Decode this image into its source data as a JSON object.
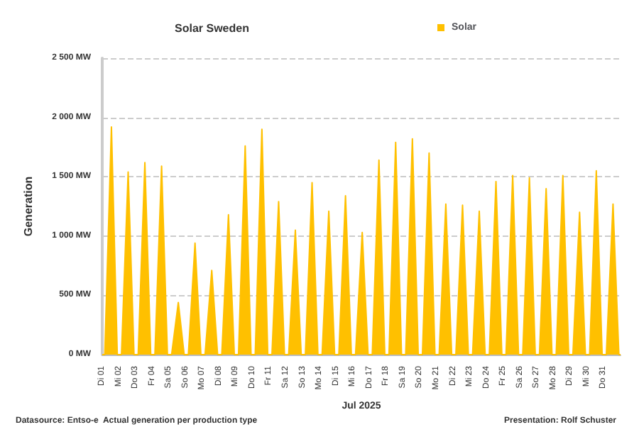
{
  "chart_data": {
    "type": "area",
    "title": "Solar Sweden",
    "xlabel": "Jul 2025",
    "ylabel": "Generation",
    "x": [
      "2025-07-01T00:00",
      "2025-07-01T03:36",
      "2025-07-01T13:12",
      "2025-07-01T21:36",
      "2025-07-02T03:36",
      "2025-07-02T13:12",
      "2025-07-02T21:36",
      "2025-07-03T03:36",
      "2025-07-03T13:12",
      "2025-07-03T21:36",
      "2025-07-04T03:36",
      "2025-07-04T13:12",
      "2025-07-04T21:36",
      "2025-07-05T03:36",
      "2025-07-05T13:12",
      "2025-07-05T21:36",
      "2025-07-06T03:36",
      "2025-07-06T13:12",
      "2025-07-06T21:36",
      "2025-07-07T03:36",
      "2025-07-07T13:12",
      "2025-07-07T21:36",
      "2025-07-08T03:36",
      "2025-07-08T13:12",
      "2025-07-08T21:36",
      "2025-07-09T03:36",
      "2025-07-09T13:12",
      "2025-07-09T21:36",
      "2025-07-10T03:36",
      "2025-07-10T13:12",
      "2025-07-10T21:36",
      "2025-07-11T03:36",
      "2025-07-11T13:12",
      "2025-07-11T21:36",
      "2025-07-12T03:36",
      "2025-07-12T13:12",
      "2025-07-12T21:36",
      "2025-07-13T03:36",
      "2025-07-13T13:12",
      "2025-07-13T21:36",
      "2025-07-14T03:36",
      "2025-07-14T13:12",
      "2025-07-14T21:36",
      "2025-07-15T03:36",
      "2025-07-15T13:12",
      "2025-07-15T21:36",
      "2025-07-16T03:36",
      "2025-07-16T13:12",
      "2025-07-16T21:36",
      "2025-07-17T03:36",
      "2025-07-17T13:12",
      "2025-07-17T21:36",
      "2025-07-18T03:36",
      "2025-07-18T13:12",
      "2025-07-18T21:36",
      "2025-07-19T03:36",
      "2025-07-19T13:12",
      "2025-07-19T21:36",
      "2025-07-20T03:36",
      "2025-07-20T13:12",
      "2025-07-20T21:36",
      "2025-07-21T03:36",
      "2025-07-21T13:12",
      "2025-07-21T21:36",
      "2025-07-22T03:36",
      "2025-07-22T13:12",
      "2025-07-22T21:36",
      "2025-07-23T03:36",
      "2025-07-23T13:12",
      "2025-07-23T21:36",
      "2025-07-24T03:36",
      "2025-07-24T13:12",
      "2025-07-24T21:36",
      "2025-07-25T03:36",
      "2025-07-25T13:12",
      "2025-07-25T21:36",
      "2025-07-26T03:36",
      "2025-07-26T13:12",
      "2025-07-26T21:36",
      "2025-07-27T03:36",
      "2025-07-27T13:12",
      "2025-07-27T21:36",
      "2025-07-28T03:36",
      "2025-07-28T13:12",
      "2025-07-28T21:36",
      "2025-07-29T03:36",
      "2025-07-29T13:12",
      "2025-07-29T21:36",
      "2025-07-30T03:36",
      "2025-07-30T13:12",
      "2025-07-30T21:36",
      "2025-07-31T03:36",
      "2025-07-31T13:12",
      "2025-07-31T21:36",
      "2025-08-01T00:00"
    ],
    "series": [
      {
        "name": "Solar",
        "color": "#ffc000",
        "values": [
          0,
          0,
          1920,
          0,
          0,
          1540,
          0,
          0,
          1620,
          0,
          0,
          1590,
          0,
          0,
          440,
          0,
          0,
          940,
          0,
          0,
          710,
          0,
          0,
          1180,
          0,
          0,
          1760,
          0,
          0,
          1900,
          0,
          0,
          1290,
          0,
          0,
          1050,
          0,
          0,
          1450,
          0,
          0,
          1210,
          0,
          0,
          1340,
          0,
          0,
          1030,
          0,
          0,
          1640,
          0,
          0,
          1790,
          0,
          0,
          1820,
          0,
          0,
          1700,
          0,
          0,
          1270,
          0,
          0,
          1260,
          0,
          0,
          1210,
          0,
          0,
          1460,
          0,
          0,
          1510,
          0,
          0,
          1490,
          0,
          0,
          1400,
          0,
          0,
          1510,
          0,
          0,
          1200,
          0,
          0,
          1550,
          0,
          0,
          1270,
          0,
          0
        ]
      }
    ],
    "xlim": [
      "2025-07-01",
      "2025-08-01"
    ],
    "xticks": [
      {
        "value": "2025-07-01",
        "label": "Di 01"
      },
      {
        "value": "2025-07-02",
        "label": "Mi 02"
      },
      {
        "value": "2025-07-03",
        "label": "Do 03"
      },
      {
        "value": "2025-07-04",
        "label": "Fr 04"
      },
      {
        "value": "2025-07-05",
        "label": "Sa 05"
      },
      {
        "value": "2025-07-06",
        "label": "So 06"
      },
      {
        "value": "2025-07-07",
        "label": "Mo 07"
      },
      {
        "value": "2025-07-08",
        "label": "Di 08"
      },
      {
        "value": "2025-07-09",
        "label": "Mi 09"
      },
      {
        "value": "2025-07-10",
        "label": "Do 10"
      },
      {
        "value": "2025-07-11",
        "label": "Fr 11"
      },
      {
        "value": "2025-07-12",
        "label": "Sa 12"
      },
      {
        "value": "2025-07-13",
        "label": "So 13"
      },
      {
        "value": "2025-07-14",
        "label": "Mo 14"
      },
      {
        "value": "2025-07-15",
        "label": "Di 15"
      },
      {
        "value": "2025-07-16",
        "label": "Mi 16"
      },
      {
        "value": "2025-07-17",
        "label": "Do 17"
      },
      {
        "value": "2025-07-18",
        "label": "Fr 18"
      },
      {
        "value": "2025-07-19",
        "label": "Sa 19"
      },
      {
        "value": "2025-07-20",
        "label": "So 20"
      },
      {
        "value": "2025-07-21",
        "label": "Mo 21"
      },
      {
        "value": "2025-07-22",
        "label": "Di 22"
      },
      {
        "value": "2025-07-23",
        "label": "Mi 23"
      },
      {
        "value": "2025-07-24",
        "label": "Do 24"
      },
      {
        "value": "2025-07-25",
        "label": "Fr 25"
      },
      {
        "value": "2025-07-26",
        "label": "Sa 26"
      },
      {
        "value": "2025-07-27",
        "label": "So 27"
      },
      {
        "value": "2025-07-28",
        "label": "Mo 28"
      },
      {
        "value": "2025-07-29",
        "label": "Di 29"
      },
      {
        "value": "2025-07-30",
        "label": "Mi 30"
      },
      {
        "value": "2025-07-31",
        "label": "Do 31"
      }
    ],
    "ylim": [
      0,
      2500
    ],
    "yticks": [
      {
        "value": 0,
        "label": "0 MW"
      },
      {
        "value": 500,
        "label": "500 MW"
      },
      {
        "value": 1000,
        "label": "1 000 MW"
      },
      {
        "value": 1500,
        "label": "1 500 MW"
      },
      {
        "value": 2000,
        "label": "2 000 MW"
      },
      {
        "value": 2500,
        "label": "2 500 MW"
      }
    ],
    "grid": "y",
    "legend": "top right",
    "annotations": [
      "Datasource: Entso-e  Actual generation per production type",
      "Presentation: Rolf Schuster"
    ]
  }
}
